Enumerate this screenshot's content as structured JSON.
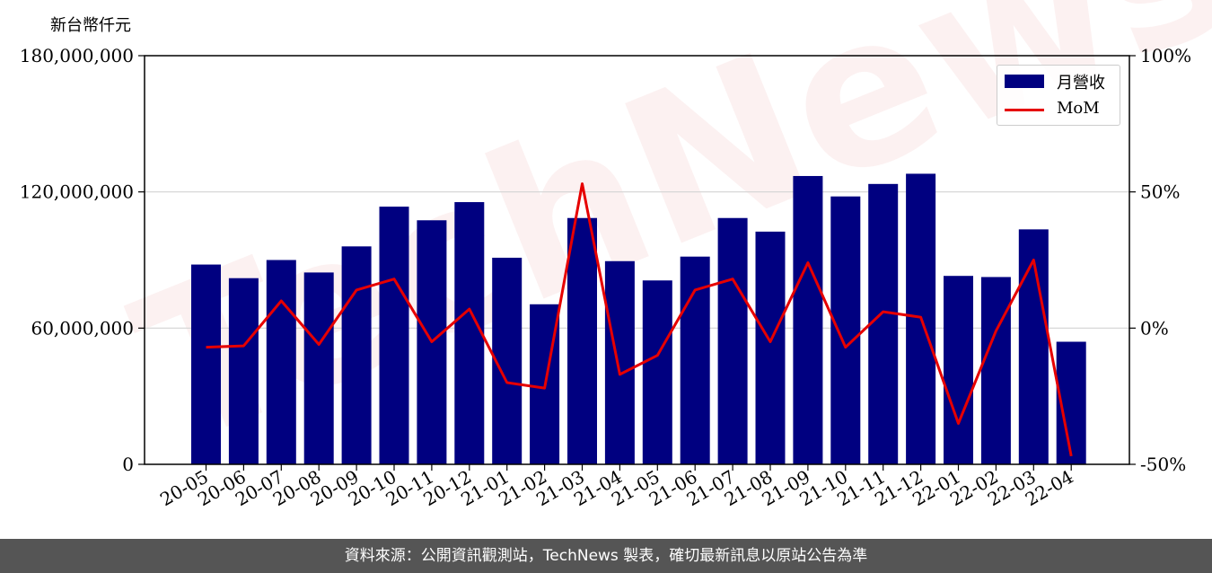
{
  "unit_label": "新台幣仟元",
  "watermark": "TechNews",
  "footer": "資料來源：公開資訊觀測站，TechNews 製表，確切最新訊息以原站公告為準",
  "colors": {
    "bar": "#000080",
    "line": "#e60000",
    "grid": "#d3d3d3",
    "footer_bg": "#555555"
  },
  "chart_data": {
    "type": "bar",
    "categories": [
      "20-05",
      "20-06",
      "20-07",
      "20-08",
      "20-09",
      "20-10",
      "20-11",
      "20-12",
      "21-01",
      "21-02",
      "21-03",
      "21-04",
      "21-05",
      "21-06",
      "21-07",
      "21-08",
      "21-09",
      "21-10",
      "21-11",
      "21-12",
      "22-01",
      "22-02",
      "22-03",
      "22-04"
    ],
    "series": [
      {
        "name": "月營收",
        "type": "bar",
        "axis": "left",
        "values": [
          88000000,
          82000000,
          90000000,
          84500000,
          96000000,
          113500000,
          107500000,
          115500000,
          91000000,
          70500000,
          108500000,
          89500000,
          81000000,
          91500000,
          108500000,
          102500000,
          127000000,
          118000000,
          123500000,
          128000000,
          83000000,
          82500000,
          103500000,
          54000000
        ]
      },
      {
        "name": "MoM",
        "type": "line",
        "axis": "right",
        "values": [
          -7.0,
          -6.5,
          10.0,
          -6.0,
          14.0,
          18.0,
          -5.0,
          7.0,
          -20.0,
          -22.0,
          53.0,
          -17.0,
          -10.0,
          14.0,
          18.0,
          -5.0,
          24.0,
          -7.0,
          6.0,
          4.0,
          -35.0,
          -1.0,
          25.0,
          -47.0
        ]
      }
    ],
    "xlabel": "",
    "ylabel": "新台幣仟元",
    "ylim": [
      0,
      180000000
    ],
    "y_ticks": [
      "0",
      "60,000,000",
      "120,000,000",
      "180,000,000"
    ],
    "y_tick_values": [
      0,
      60000000,
      120000000,
      180000000
    ],
    "y2lim": [
      -50,
      100
    ],
    "y2_ticks": [
      "-50%",
      "0%",
      "50%",
      "100%"
    ],
    "y2_tick_values": [
      -50,
      0,
      50,
      100
    ],
    "grid": true,
    "legend_position": "top-right"
  }
}
